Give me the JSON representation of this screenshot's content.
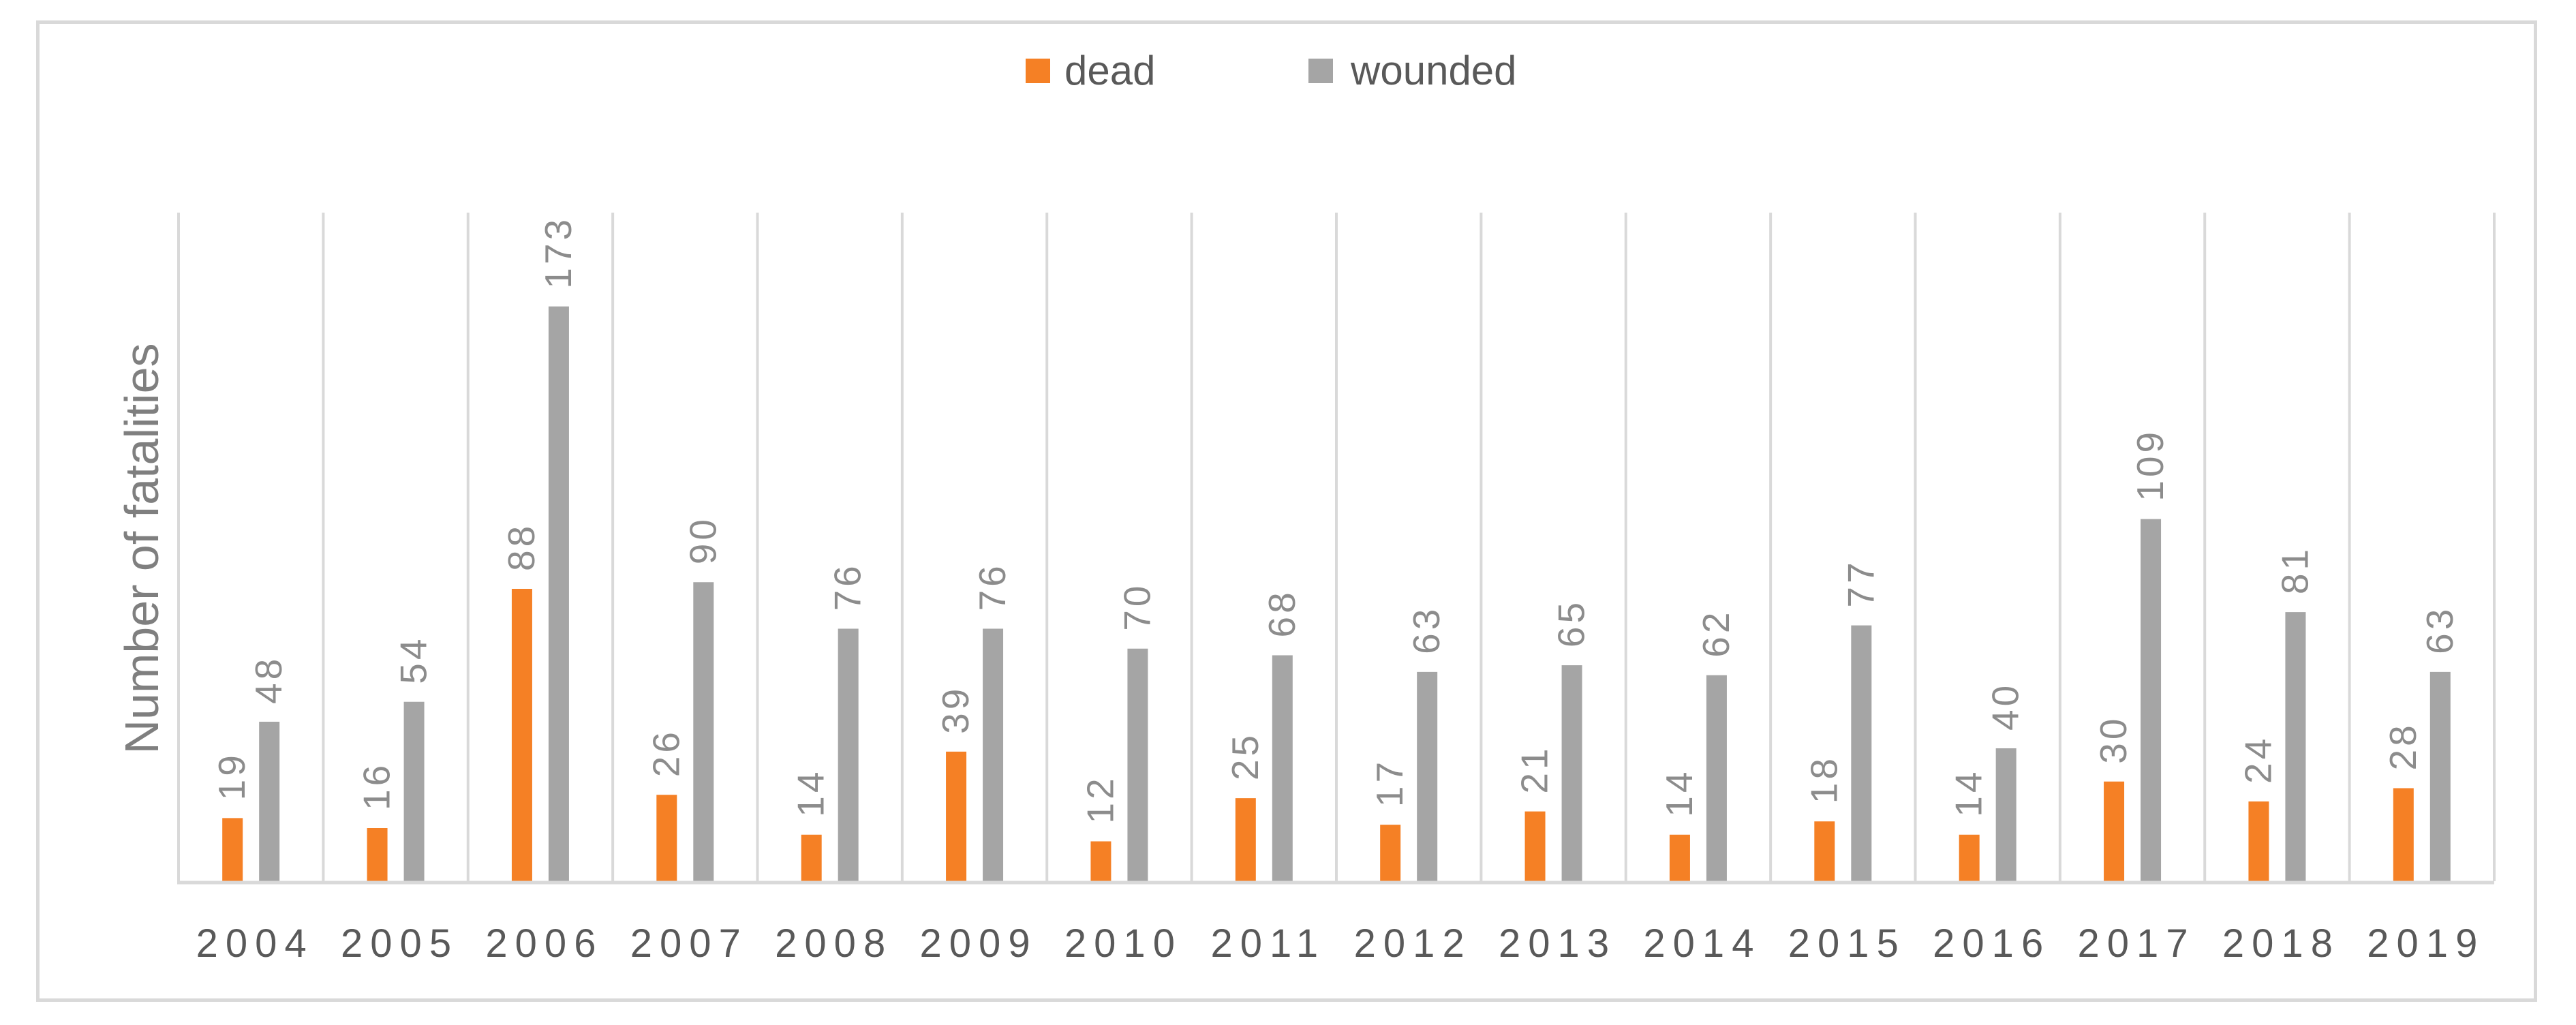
{
  "chart_data": {
    "type": "bar",
    "title": "",
    "xlabel": "",
    "ylabel": "Number of fatalities",
    "ylim": [
      0,
      190
    ],
    "grid": "vertical",
    "legend_position": "top-center",
    "categories": [
      "2004",
      "2005",
      "2006",
      "2007",
      "2008",
      "2009",
      "2010",
      "2011",
      "2012",
      "2013",
      "2014",
      "2015",
      "2016",
      "2017",
      "2018",
      "2019"
    ],
    "series": [
      {
        "name": "dead",
        "color": "#F58025",
        "values": [
          19,
          16,
          88,
          26,
          14,
          39,
          12,
          25,
          17,
          21,
          14,
          18,
          14,
          30,
          24,
          28
        ]
      },
      {
        "name": "wounded",
        "color": "#A5A5A5",
        "values": [
          48,
          54,
          173,
          90,
          76,
          76,
          70,
          68,
          63,
          65,
          62,
          77,
          40,
          109,
          81,
          63
        ]
      }
    ]
  }
}
